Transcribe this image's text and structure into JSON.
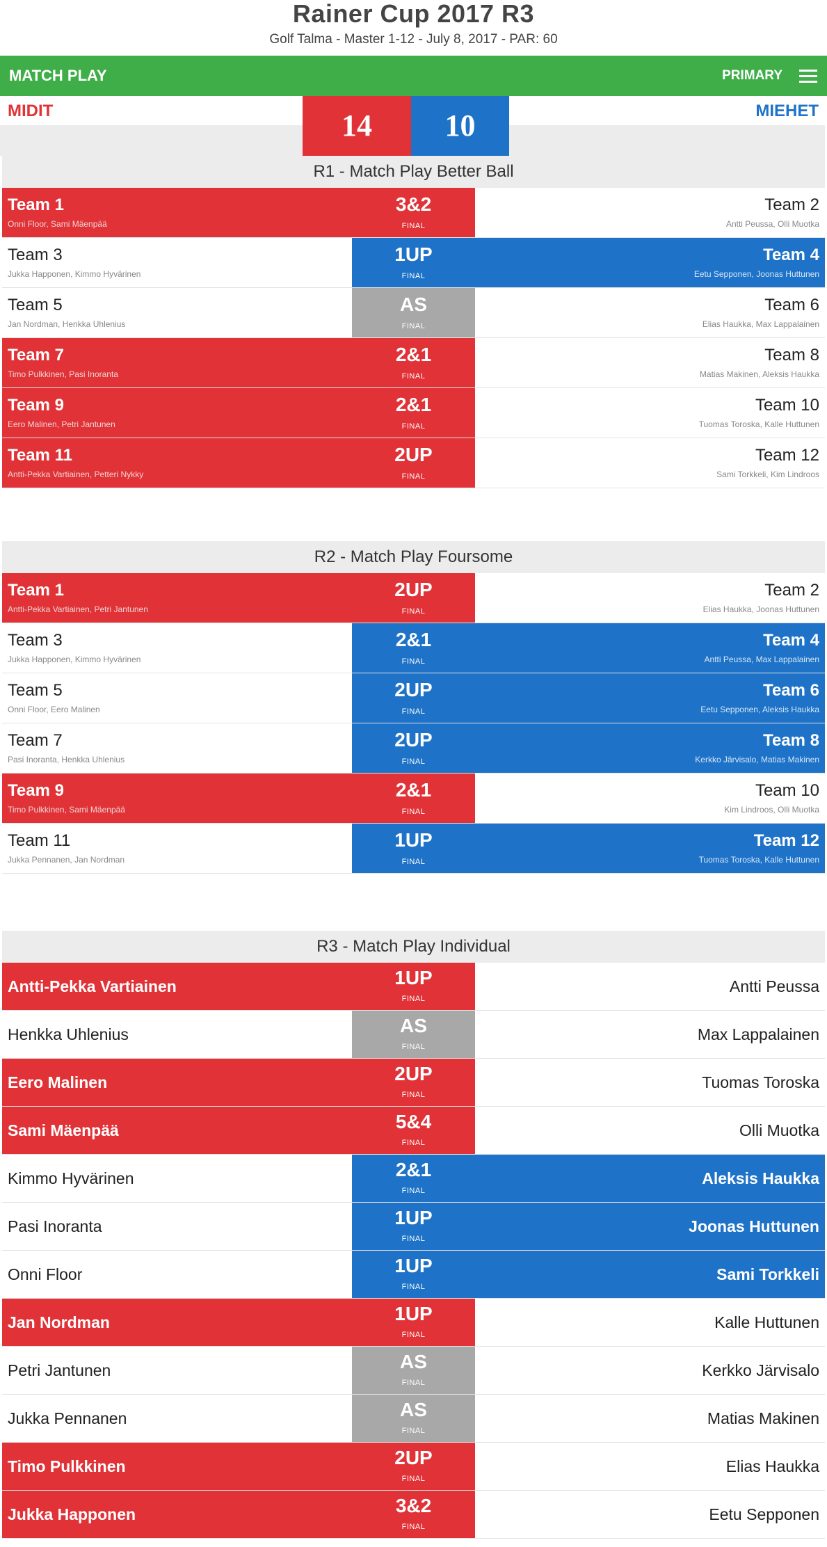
{
  "header": {
    "title": "Rainer Cup 2017 R3",
    "subtitle": "Golf Talma - Master 1-12 - July 8, 2017 - PAR: 60"
  },
  "navbar": {
    "left_label": "MATCH PLAY",
    "right_label": "PRIMARY",
    "menu_icon": "hamburger-icon"
  },
  "scoreboard": {
    "left_team": "MIDIT",
    "right_team": "MIEHET",
    "left_score": "14",
    "right_score": "10"
  },
  "colors": {
    "red": "#e03237",
    "blue": "#1e73c8",
    "gray": "#a8a8a8",
    "green": "#3fae49"
  },
  "rounds": [
    {
      "title": "R1 - Match Play Better Ball",
      "matches": [
        {
          "left_name": "Team 1",
          "left_players": "Onni Floor, Sami Mäenpää",
          "right_name": "Team 2",
          "right_players": "Antti Peussa, Olli Muotka",
          "result": "3&2",
          "status": "FINAL",
          "winner": "left"
        },
        {
          "left_name": "Team 3",
          "left_players": "Jukka Happonen, Kimmo Hyvärinen",
          "right_name": "Team 4",
          "right_players": "Eetu Sepponen, Joonas Huttunen",
          "result": "1UP",
          "status": "FINAL",
          "winner": "right"
        },
        {
          "left_name": "Team 5",
          "left_players": "Jan Nordman, Henkka Uhlenius",
          "right_name": "Team 6",
          "right_players": "Elias Haukka, Max Lappalainen",
          "result": "AS",
          "status": "FINAL",
          "winner": "tie"
        },
        {
          "left_name": "Team 7",
          "left_players": "Timo Pulkkinen, Pasi Inoranta",
          "right_name": "Team 8",
          "right_players": "Matias Makinen, Aleksis Haukka",
          "result": "2&1",
          "status": "FINAL",
          "winner": "left"
        },
        {
          "left_name": "Team 9",
          "left_players": "Eero Malinen, Petri Jantunen",
          "right_name": "Team 10",
          "right_players": "Tuomas Toroska, Kalle Huttunen",
          "result": "2&1",
          "status": "FINAL",
          "winner": "left"
        },
        {
          "left_name": "Team 11",
          "left_players": "Antti-Pekka Vartiainen, Petteri Nykky",
          "right_name": "Team 12",
          "right_players": "Sami Torkkeli, Kim Lindroos",
          "result": "2UP",
          "status": "FINAL",
          "winner": "left"
        }
      ]
    },
    {
      "title": "R2 - Match Play Foursome",
      "matches": [
        {
          "left_name": "Team 1",
          "left_players": "Antti-Pekka Vartiainen, Petri Jantunen",
          "right_name": "Team 2",
          "right_players": "Elias Haukka, Joonas Huttunen",
          "result": "2UP",
          "status": "FINAL",
          "winner": "left"
        },
        {
          "left_name": "Team 3",
          "left_players": "Jukka Happonen, Kimmo Hyvärinen",
          "right_name": "Team 4",
          "right_players": "Antti Peussa, Max Lappalainen",
          "result": "2&1",
          "status": "FINAL",
          "winner": "right"
        },
        {
          "left_name": "Team 5",
          "left_players": "Onni Floor, Eero Malinen",
          "right_name": "Team 6",
          "right_players": "Eetu Sepponen, Aleksis Haukka",
          "result": "2UP",
          "status": "FINAL",
          "winner": "right"
        },
        {
          "left_name": "Team 7",
          "left_players": "Pasi Inoranta, Henkka Uhlenius",
          "right_name": "Team 8",
          "right_players": "Kerkko Järvisalo, Matias Makinen",
          "result": "2UP",
          "status": "FINAL",
          "winner": "right"
        },
        {
          "left_name": "Team 9",
          "left_players": "Timo Pulkkinen, Sami Mäenpää",
          "right_name": "Team 10",
          "right_players": "Kim Lindroos, Olli Muotka",
          "result": "2&1",
          "status": "FINAL",
          "winner": "left"
        },
        {
          "left_name": "Team 11",
          "left_players": "Jukka Pennanen, Jan Nordman",
          "right_name": "Team 12",
          "right_players": "Tuomas Toroska, Kalle Huttunen",
          "result": "1UP",
          "status": "FINAL",
          "winner": "right"
        }
      ]
    },
    {
      "title": "R3 - Match Play Individual",
      "matches": [
        {
          "left_name": "Antti-Pekka Vartiainen",
          "right_name": "Antti Peussa",
          "result": "1UP",
          "status": "FINAL",
          "winner": "left"
        },
        {
          "left_name": "Henkka Uhlenius",
          "right_name": "Max Lappalainen",
          "result": "AS",
          "status": "FINAL",
          "winner": "tie"
        },
        {
          "left_name": "Eero Malinen",
          "right_name": "Tuomas Toroska",
          "result": "2UP",
          "status": "FINAL",
          "winner": "left"
        },
        {
          "left_name": "Sami Mäenpää",
          "right_name": "Olli Muotka",
          "result": "5&4",
          "status": "FINAL",
          "winner": "left"
        },
        {
          "left_name": "Kimmo Hyvärinen",
          "right_name": "Aleksis Haukka",
          "result": "2&1",
          "status": "FINAL",
          "winner": "right"
        },
        {
          "left_name": "Pasi Inoranta",
          "right_name": "Joonas Huttunen",
          "result": "1UP",
          "status": "FINAL",
          "winner": "right"
        },
        {
          "left_name": "Onni Floor",
          "right_name": "Sami Torkkeli",
          "result": "1UP",
          "status": "FINAL",
          "winner": "right"
        },
        {
          "left_name": "Jan Nordman",
          "right_name": "Kalle Huttunen",
          "result": "1UP",
          "status": "FINAL",
          "winner": "left"
        },
        {
          "left_name": "Petri Jantunen",
          "right_name": "Kerkko Järvisalo",
          "result": "AS",
          "status": "FINAL",
          "winner": "tie"
        },
        {
          "left_name": "Jukka Pennanen",
          "right_name": "Matias Makinen",
          "result": "AS",
          "status": "FINAL",
          "winner": "tie"
        },
        {
          "left_name": "Timo Pulkkinen",
          "right_name": "Elias Haukka",
          "result": "2UP",
          "status": "FINAL",
          "winner": "left"
        },
        {
          "left_name": "Jukka Happonen",
          "right_name": "Eetu Sepponen",
          "result": "3&2",
          "status": "FINAL",
          "winner": "left"
        }
      ]
    }
  ]
}
